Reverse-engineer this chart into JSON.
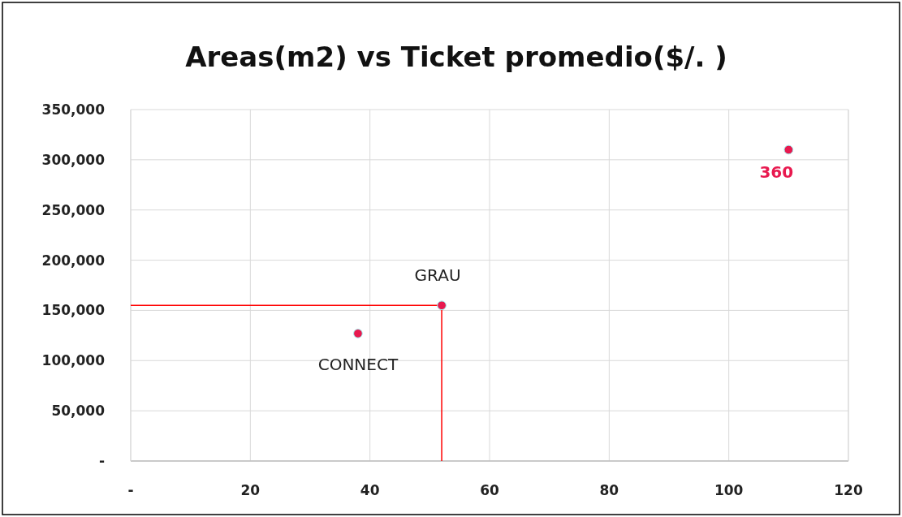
{
  "chart_data": {
    "type": "scatter",
    "title": "Areas(m2) vs Ticket promedio($/. )",
    "series": [
      {
        "color": "#e8194f",
        "x": [
          38,
          52,
          110
        ],
        "values": [
          127000,
          155000,
          310000
        ]
      },
      {
        "type": "line",
        "marker": "none",
        "color": "#ff0000",
        "x": [
          0,
          52,
          52
        ],
        "values": [
          155000,
          155000,
          0
        ]
      }
    ],
    "annotations": [
      {
        "text": "CONNECT",
        "x": 38,
        "y": 127000
      },
      {
        "text": "GRAU",
        "x": 52,
        "y": 155000
      },
      {
        "text": "360",
        "x": 110,
        "y": 310000
      }
    ],
    "xlim": [
      0,
      120
    ],
    "xticks": [
      {
        "value": 0,
        "label": "-"
      },
      20,
      40,
      60,
      80,
      100,
      120
    ],
    "ylim": [
      0,
      350000
    ],
    "yticks": [
      {
        "value": 0,
        "label": "-"
      },
      {
        "value": 50000,
        "label": "50,000"
      },
      {
        "value": 100000,
        "label": "100,000"
      },
      {
        "value": 150000,
        "label": "150,000"
      },
      {
        "value": 200000,
        "label": "200,000"
      },
      {
        "value": 250000,
        "label": "250,000"
      },
      {
        "value": 300000,
        "label": "300,000"
      },
      {
        "value": 350000,
        "label": "350,000"
      }
    ],
    "grid": true,
    "marker": "circle"
  }
}
